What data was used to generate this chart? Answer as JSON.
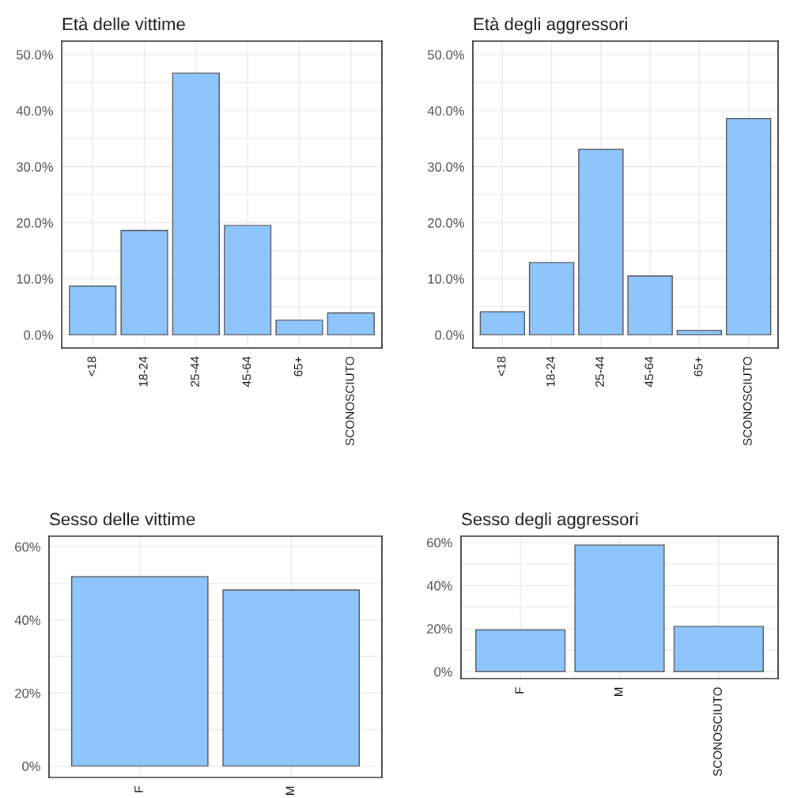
{
  "chart_data": [
    {
      "type": "bar",
      "title": "Età delle vittime",
      "categories": [
        "<18",
        "18-24",
        "25-44",
        "45-64",
        "65+",
        "SCONOSCIUTO"
      ],
      "values": [
        8.7,
        18.6,
        46.7,
        19.5,
        2.6,
        3.9
      ],
      "color": "#8fc5fd",
      "ylim": [
        -2.35,
        52.4
      ],
      "yticks": [
        {
          "value": 0,
          "label": "0.0%"
        },
        {
          "value": 10,
          "label": "10.0%"
        },
        {
          "value": 20,
          "label": "20.0%"
        },
        {
          "value": 30,
          "label": "30.0%"
        },
        {
          "value": 40,
          "label": "40.0%"
        },
        {
          "value": 50,
          "label": "50.0%"
        }
      ],
      "grid": true
    },
    {
      "type": "bar",
      "title": "Età degli aggressori",
      "categories": [
        "<18",
        "18-24",
        "25-44",
        "45-64",
        "65+",
        "SCONOSCIUTO"
      ],
      "values": [
        4.1,
        12.9,
        33.1,
        10.5,
        0.8,
        38.6
      ],
      "color": "#8fc5fd",
      "ylim": [
        -2.35,
        52.4
      ],
      "yticks": [
        {
          "value": 0,
          "label": "0.0%"
        },
        {
          "value": 10,
          "label": "10.0%"
        },
        {
          "value": 20,
          "label": "20.0%"
        },
        {
          "value": 30,
          "label": "30.0%"
        },
        {
          "value": 40,
          "label": "40.0%"
        },
        {
          "value": 50,
          "label": "50.0%"
        }
      ],
      "grid": true
    },
    {
      "type": "bar",
      "title": "Sesso delle vittime",
      "categories": [
        "F",
        "M"
      ],
      "values": [
        51.8,
        48.2
      ],
      "color": "#8fc5fd",
      "ylim": [
        -3.1,
        62.9
      ],
      "yticks": [
        {
          "value": 0,
          "label": "0%"
        },
        {
          "value": 20,
          "label": "20%"
        },
        {
          "value": 40,
          "label": "40%"
        },
        {
          "value": 60,
          "label": "60%"
        }
      ],
      "grid": true
    },
    {
      "type": "bar",
      "title": "Sesso degli aggressori",
      "categories": [
        "F",
        "M",
        "SCONOSCIUTO"
      ],
      "values": [
        19.4,
        58.8,
        21.0
      ],
      "color": "#8fc5fd",
      "ylim": [
        -3.2,
        62.9
      ],
      "yticks": [
        {
          "value": 0,
          "label": "0%"
        },
        {
          "value": 20,
          "label": "20%"
        },
        {
          "value": 40,
          "label": "40%"
        },
        {
          "value": 60,
          "label": "60%"
        }
      ],
      "grid": true
    }
  ]
}
